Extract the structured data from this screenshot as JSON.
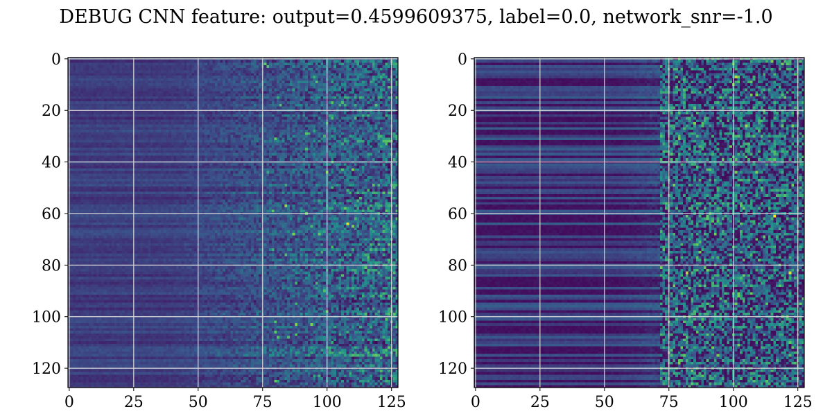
{
  "figure": {
    "title": "DEBUG CNN feature: output=0.4599609375, label=0.0, network_snr=-1.0"
  },
  "colormap": {
    "name": "viridis",
    "stops": [
      "#440154",
      "#3b528b",
      "#21918c",
      "#5ec962",
      "#fde725"
    ]
  },
  "chart_data": [
    {
      "type": "heatmap",
      "panel": "left",
      "title": "",
      "xlabel": "",
      "ylabel": "",
      "shape": [
        128,
        128
      ],
      "xlim": [
        0,
        127
      ],
      "ylim": [
        127,
        0
      ],
      "xticks": [
        0,
        25,
        50,
        75,
        100,
        125
      ],
      "yticks": [
        0,
        20,
        40,
        60,
        80,
        100,
        120
      ],
      "grid": true,
      "value_range": [
        0,
        1
      ],
      "value_profile": "low (dark purple) on the left half, rising to noisy blue-green texture past column ~75 with scattered bright green/yellow pixels",
      "highlights": [
        {
          "x": 84,
          "y": 57,
          "v": 0.85
        },
        {
          "x": 108,
          "y": 64,
          "v": 0.95
        },
        {
          "x": 110,
          "y": 65,
          "v": 0.8
        },
        {
          "x": 87,
          "y": 68,
          "v": 0.8
        },
        {
          "x": 97,
          "y": 68,
          "v": 0.75
        },
        {
          "x": 100,
          "y": 44,
          "v": 0.8
        },
        {
          "x": 110,
          "y": 43,
          "v": 0.8
        },
        {
          "x": 106,
          "y": 43,
          "v": 0.7
        },
        {
          "x": 80,
          "y": 31,
          "v": 0.75
        },
        {
          "x": 88,
          "y": 103,
          "v": 0.8
        },
        {
          "x": 94,
          "y": 103,
          "v": 0.8
        },
        {
          "x": 100,
          "y": 98,
          "v": 0.75
        },
        {
          "x": 107,
          "y": 58,
          "v": 0.75
        },
        {
          "x": 121,
          "y": 121,
          "v": 0.7
        }
      ]
    },
    {
      "type": "heatmap",
      "panel": "right",
      "title": "",
      "xlabel": "",
      "ylabel": "",
      "shape": [
        128,
        128
      ],
      "xlim": [
        0,
        127
      ],
      "ylim": [
        127,
        0
      ],
      "xticks": [
        0,
        25,
        50,
        75,
        100,
        125
      ],
      "yticks": [
        0,
        20,
        40,
        60,
        80,
        100,
        120
      ],
      "grid": true,
      "value_range": [
        0,
        1
      ],
      "value_profile": "horizontal dark/medium stripes on the left, sharp transition near column ~75 to high-contrast noisy texture with many green/yellow pixels",
      "highlights": [
        {
          "x": 101,
          "y": 7,
          "v": 0.9
        },
        {
          "x": 115,
          "y": 1,
          "v": 0.8
        },
        {
          "x": 105,
          "y": 26,
          "v": 0.85
        },
        {
          "x": 116,
          "y": 61,
          "v": 1.0
        },
        {
          "x": 122,
          "y": 83,
          "v": 0.95
        },
        {
          "x": 82,
          "y": 83,
          "v": 0.9
        },
        {
          "x": 101,
          "y": 44,
          "v": 0.8
        },
        {
          "x": 109,
          "y": 44,
          "v": 0.8
        },
        {
          "x": 91,
          "y": 43,
          "v": 0.75
        },
        {
          "x": 94,
          "y": 115,
          "v": 0.8
        },
        {
          "x": 119,
          "y": 100,
          "v": 0.75
        },
        {
          "x": 85,
          "y": 25,
          "v": 0.8
        },
        {
          "x": 119,
          "y": 26,
          "v": 0.75
        },
        {
          "x": 84,
          "y": 126,
          "v": 0.75
        },
        {
          "x": 124,
          "y": 118,
          "v": 0.7
        }
      ]
    }
  ]
}
